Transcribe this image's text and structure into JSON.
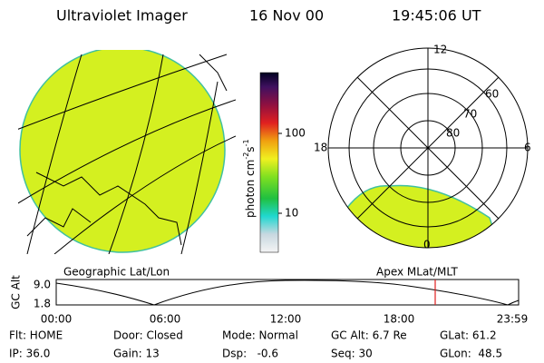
{
  "header": {
    "instrument": "Ultraviolet Imager",
    "date": "16 Nov 00",
    "time": "19:45:06 UT"
  },
  "colorbar": {
    "ticks": [
      "100",
      "10"
    ],
    "unit": {
      "base": "photon cm",
      "exp1": "-2",
      "base2": "s",
      "exp2": "-1"
    }
  },
  "polar_plot": {
    "mlt_labels": [
      "12",
      "18",
      "6",
      "0"
    ],
    "mlat_labels": [
      "60",
      "70",
      "80"
    ]
  },
  "timeline": {
    "left_title": "Geographic Lat/Lon",
    "right_title": "Apex MLat/MLT",
    "axis_label": "GC Alt",
    "y_labels": [
      "9.0",
      "1.8"
    ],
    "time_labels": [
      "00:00",
      "06:00",
      "12:00",
      "18:00",
      "23:59"
    ]
  },
  "info": {
    "rows": [
      [
        "Flt: HOME",
        "Door: Closed",
        "Mode: Normal",
        "GC Alt: 6.7 Re",
        "GLat: 61.2"
      ],
      [
        "IP: 36.0",
        "Gain: 13",
        "Dsp:   -0.6",
        "Seq: 30",
        "GLon:  48.5"
      ]
    ]
  }
}
